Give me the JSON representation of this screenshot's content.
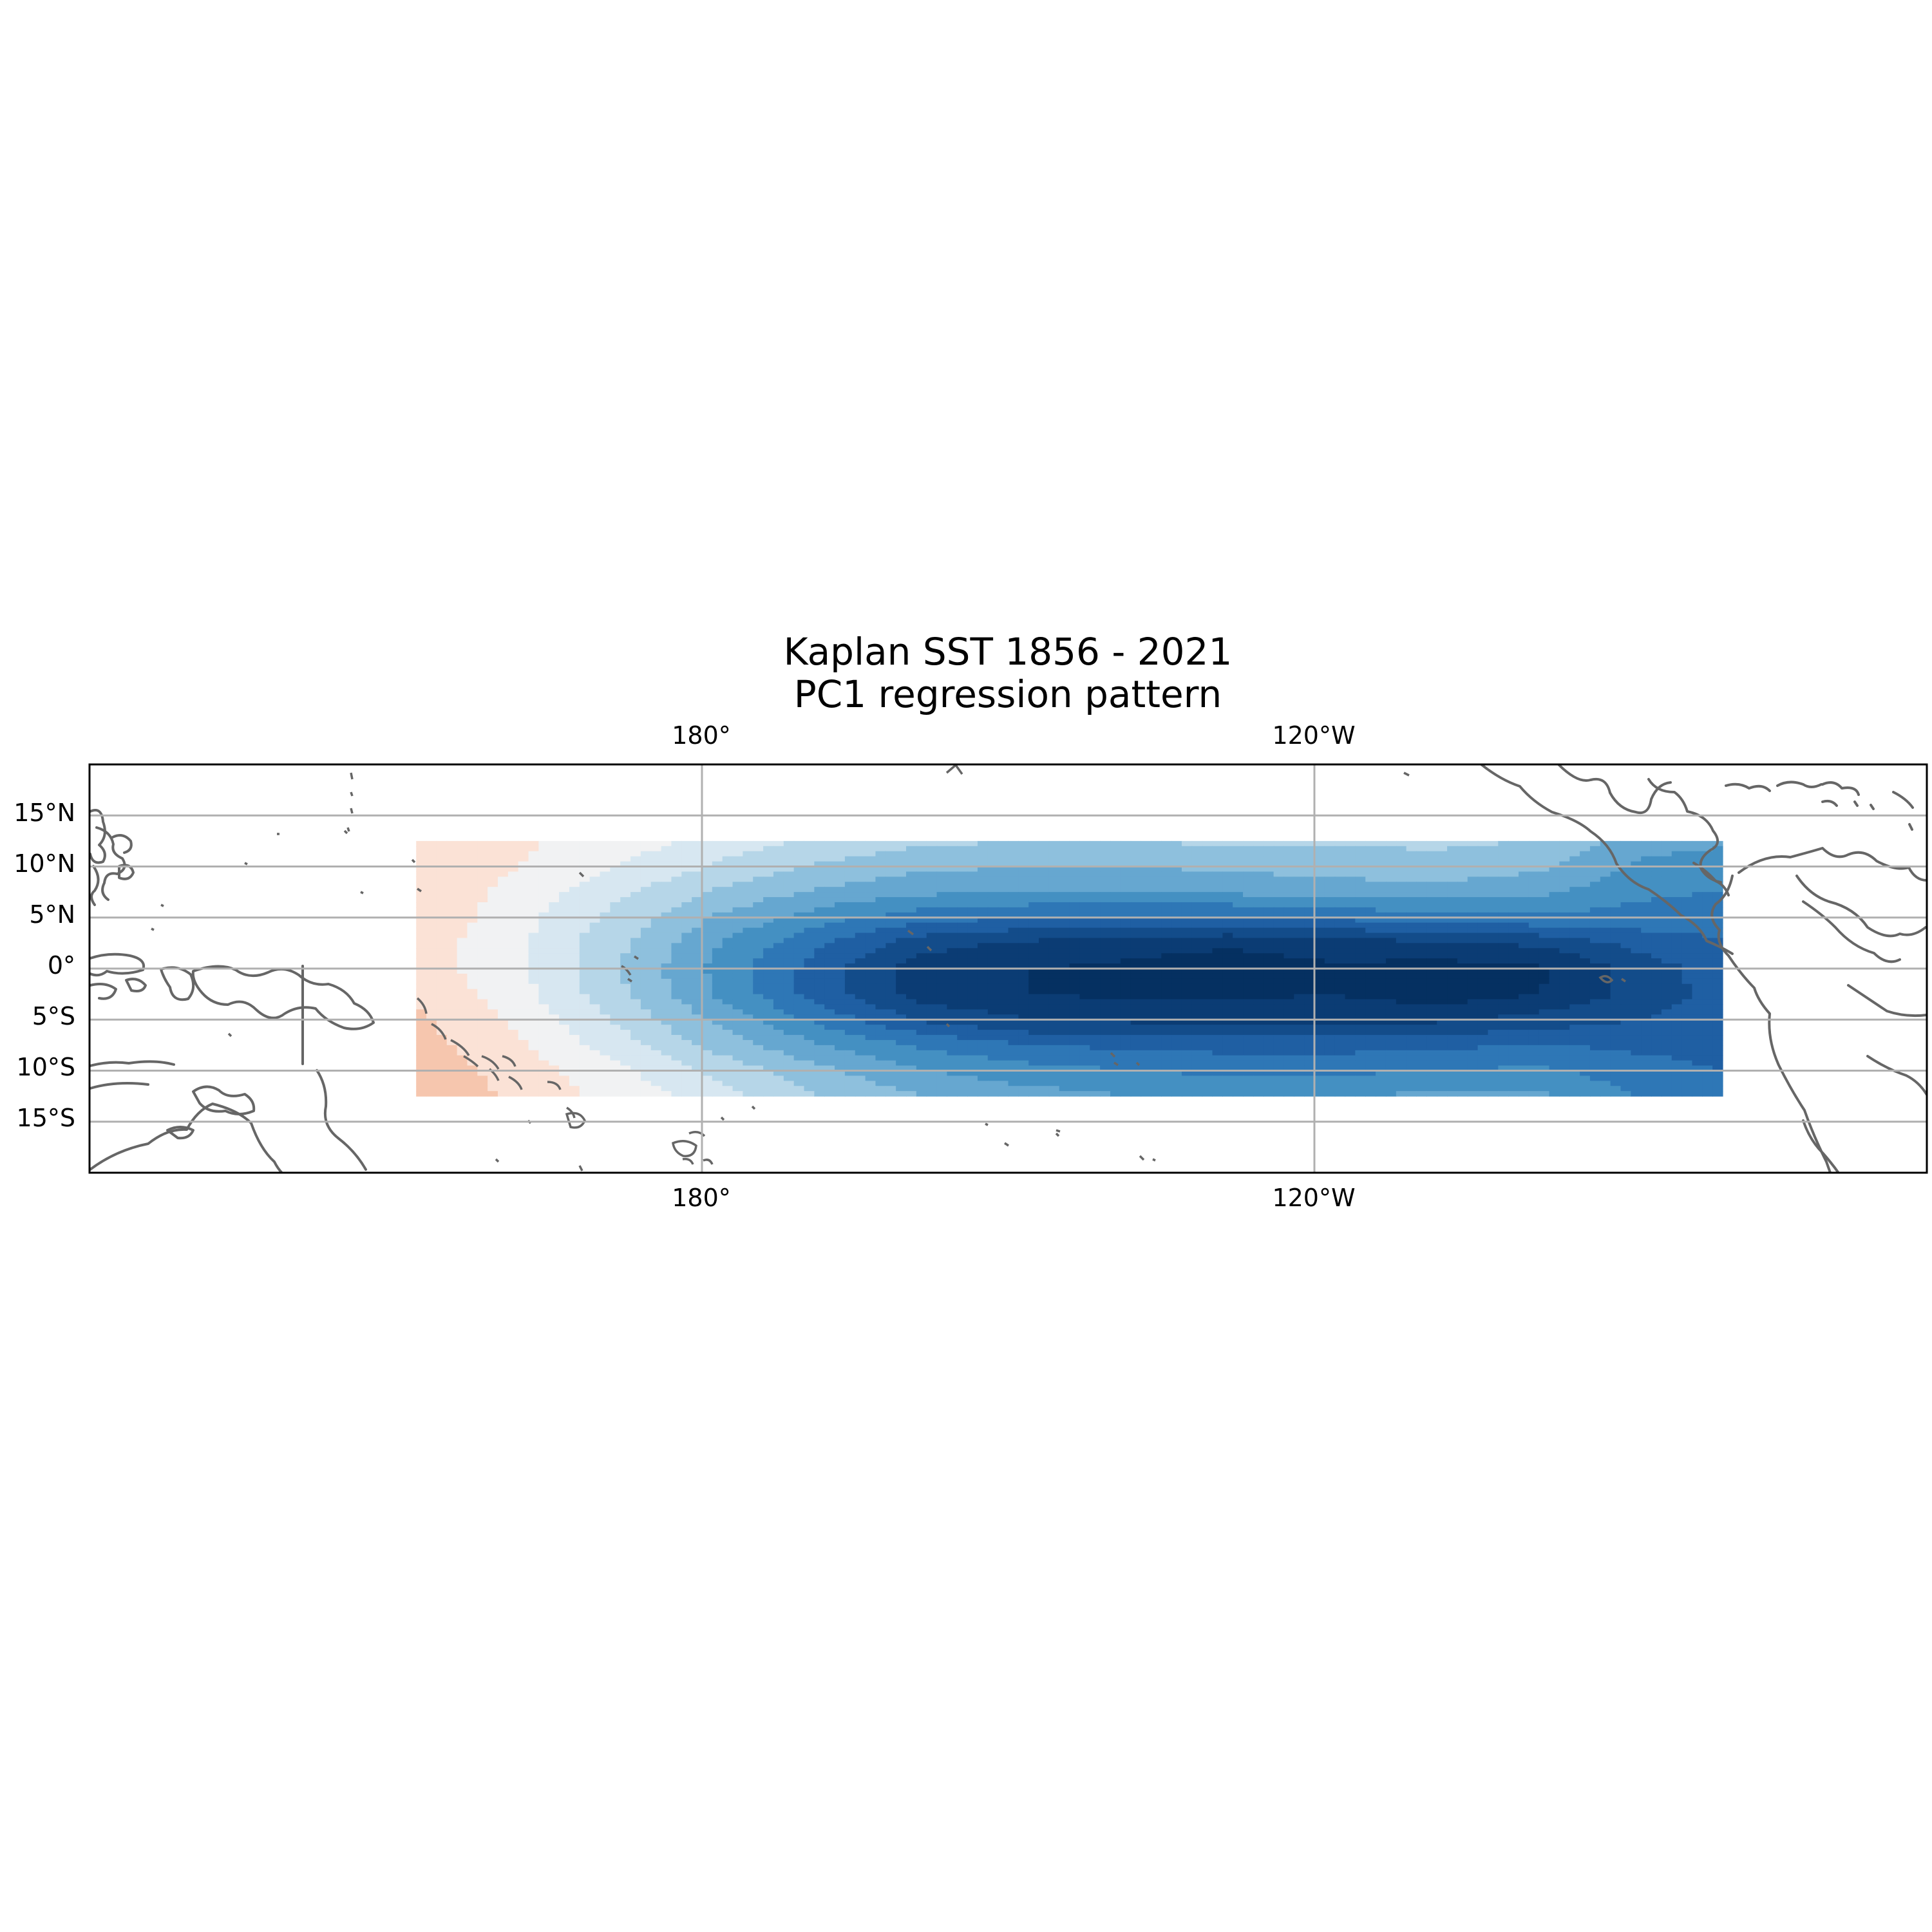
{
  "title": {
    "line1": "Kaplan SST 1856 - 2021",
    "line2": "PC1 regression pattern"
  },
  "chart_data": {
    "type": "heatmap",
    "title": "Kaplan SST 1856 - 2021\nPC1 regression pattern",
    "projection": "PlateCarree, central longitude 180°",
    "map_extent": {
      "lon": [
        120,
        300
      ],
      "lat": [
        -20,
        20
      ]
    },
    "data_extent": {
      "lon": [
        152,
        280
      ],
      "lat": [
        -12.5,
        12.5
      ]
    },
    "grid_lon": [
      152,
      162,
      172,
      182,
      192,
      202,
      212,
      222,
      232,
      242,
      252,
      262,
      272,
      280
    ],
    "grid_lat": [
      12.5,
      10,
      7.5,
      5,
      2.5,
      0,
      -2.5,
      -5,
      -7.5,
      -10,
      -12.5
    ],
    "colormap": "RdBu",
    "levels": [
      -1.1,
      -1.0,
      -0.9,
      -0.8,
      -0.7,
      -0.6,
      -0.5,
      -0.4,
      -0.3,
      -0.2,
      -0.1,
      0.0,
      0.1,
      0.2
    ],
    "level_colors": [
      "#053061",
      "#0b3c74",
      "#134c8a",
      "#1f5fa3",
      "#2e77b6",
      "#4490c2",
      "#66a7d0",
      "#8ec0dd",
      "#b6d6e8",
      "#d7e7f1",
      "#f1f2f3",
      "#fbe2d6",
      "#f6c6ae"
    ],
    "values_note": "Approximate regression coefficients (dimensionless) read from the filled contours",
    "grid_values": [
      [
        0.1,
        0.02,
        -0.05,
        -0.14,
        -0.22,
        -0.28,
        -0.3,
        -0.3,
        -0.28,
        -0.28,
        -0.28,
        -0.3,
        -0.45,
        -0.48
      ],
      [
        0.1,
        0.0,
        -0.1,
        -0.22,
        -0.32,
        -0.38,
        -0.4,
        -0.4,
        -0.38,
        -0.36,
        -0.34,
        -0.38,
        -0.52,
        -0.56
      ],
      [
        0.1,
        -0.04,
        -0.18,
        -0.32,
        -0.42,
        -0.48,
        -0.5,
        -0.5,
        -0.48,
        -0.45,
        -0.44,
        -0.47,
        -0.58,
        -0.6
      ],
      [
        0.08,
        -0.06,
        -0.24,
        -0.42,
        -0.56,
        -0.66,
        -0.7,
        -0.72,
        -0.72,
        -0.68,
        -0.64,
        -0.62,
        -0.64,
        -0.68
      ],
      [
        0.06,
        -0.08,
        -0.28,
        -0.5,
        -0.7,
        -0.86,
        -0.92,
        -0.96,
        -0.98,
        -0.94,
        -0.92,
        -0.88,
        -0.76,
        -0.7
      ],
      [
        0.06,
        -0.08,
        -0.3,
        -0.54,
        -0.76,
        -0.96,
        -1.0,
        -1.02,
        -1.06,
        -1.02,
        -1.04,
        -1.02,
        -0.86,
        -0.74
      ],
      [
        0.08,
        -0.06,
        -0.28,
        -0.52,
        -0.76,
        -0.96,
        -1.0,
        -1.02,
        -1.02,
        -1.0,
        -1.06,
        -1.0,
        -0.86,
        -0.76
      ],
      [
        0.12,
        -0.02,
        -0.22,
        -0.44,
        -0.64,
        -0.82,
        -0.9,
        -0.92,
        -0.92,
        -0.92,
        -0.92,
        -0.86,
        -0.8,
        -0.76
      ],
      [
        0.14,
        0.02,
        -0.16,
        -0.34,
        -0.5,
        -0.62,
        -0.7,
        -0.72,
        -0.74,
        -0.74,
        -0.72,
        -0.7,
        -0.72,
        -0.74
      ],
      [
        0.16,
        0.06,
        -0.08,
        -0.24,
        -0.38,
        -0.5,
        -0.56,
        -0.6,
        -0.62,
        -0.62,
        -0.6,
        -0.58,
        -0.66,
        -0.7
      ],
      [
        0.18,
        0.08,
        -0.04,
        -0.16,
        -0.3,
        -0.4,
        -0.46,
        -0.5,
        -0.52,
        -0.5,
        -0.48,
        -0.48,
        -0.6,
        -0.64
      ]
    ],
    "gridlines": {
      "lon": [
        180,
        240
      ],
      "lat": [
        15,
        10,
        5,
        0,
        -5,
        -10,
        -15
      ]
    },
    "x_tick_labels": [
      "180°",
      "120°W"
    ],
    "y_tick_labels": [
      "15°N",
      "10°N",
      "5°N",
      "0°",
      "5°S",
      "10°S",
      "15°S"
    ],
    "grid": true,
    "coastlines": true
  }
}
